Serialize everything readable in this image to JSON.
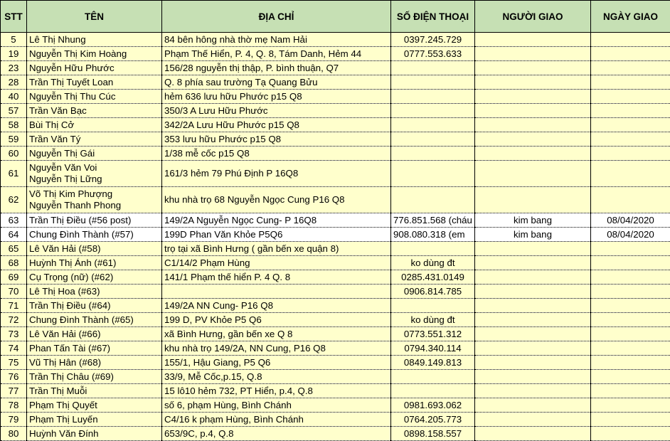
{
  "headers": [
    "STT",
    "TÊN",
    "ĐỊA CHỈ",
    "SỐ ĐIỆN THOẠI",
    "NGƯỜI GIAO",
    "NGÀY GIAO"
  ],
  "colors": {
    "header_bg": "#c6e0b4",
    "row_bg": "#ffffcc",
    "highlight_row_bg": "#ffffff"
  },
  "rows": [
    {
      "stt": "5",
      "name": "Lê Thị Nhung",
      "address": "84 bên hông nhà thờ mẹ Nam Hải",
      "phone": "0397.245.729",
      "deliverer": "",
      "date": ""
    },
    {
      "stt": "19",
      "name": "Nguyễn Thị Kim Hoàng",
      "address": "Phạm Thế Hiển, P. 4, Q. 8,  Tám Danh, Hẻm 44",
      "phone": "0777.553.633",
      "deliverer": "",
      "date": ""
    },
    {
      "stt": "23",
      "name": "Nguyễn Hữu Phước",
      "address": "156/28 nguyễn thị thập, P. bình thuận, Q7",
      "phone": "",
      "deliverer": "",
      "date": ""
    },
    {
      "stt": "28",
      "name": "Trần Thị Tuyết Loan",
      "address": "Q. 8 phía sau trường Tạ Quang Bửu",
      "phone": "",
      "deliverer": "",
      "date": ""
    },
    {
      "stt": "40",
      "name": "Nguyễn Thị Thu Cúc",
      "address": "hẻm 636 lưu hữu Phước p15 Q8",
      "phone": "",
      "deliverer": "",
      "date": ""
    },
    {
      "stt": "57",
      "name": "Trần Văn Bạc",
      "address": "350/3 A Lưu Hữu Phước",
      "phone": "",
      "deliverer": "",
      "date": ""
    },
    {
      "stt": "58",
      "name": "Bùi Thị Cở",
      "address": "342/2A Lưu Hữu Phước p15 Q8",
      "phone": "",
      "deliverer": "",
      "date": ""
    },
    {
      "stt": "59",
      "name": "Trần Văn Tý",
      "address": "353 lưu  hữu Phước p15 Q8",
      "phone": "",
      "deliverer": "",
      "date": ""
    },
    {
      "stt": "60",
      "name": "Nguyễn Thị Gái",
      "address": "1/38 mễ cốc p15 Q8",
      "phone": "",
      "deliverer": "",
      "date": ""
    },
    {
      "stt": "61",
      "name": "Nguyễn Văn Voi",
      "name2": "Nguyễn Thị Lững",
      "address": "161/3 hẻm 79 Phú Định P 16Q8",
      "phone": "",
      "deliverer": "",
      "date": ""
    },
    {
      "stt": "62",
      "name": "Võ Thị Kim Phượng",
      "name2": "Nguyễn Thanh Phong",
      "address": "khu nhà trọ 68 Nguyễn Ngọc Cung P16 Q8",
      "phone": "",
      "deliverer": "",
      "date": ""
    },
    {
      "stt": "63",
      "name": "Trần Thị Điều (#56 post)",
      "address": "149/2A Nguyễn Ngọc Cung- P 16Q8",
      "phone": "776.851.568 (cháu",
      "deliverer": "kim bang",
      "date": "08/04/2020"
    },
    {
      "stt": "64",
      "name": "Chung Đình Thành (#57)",
      "address": "199D Phan Văn Khỏe P5Q6",
      "phone": "908.080.318 (em",
      "deliverer": "kim bang",
      "date": "08/04/2020"
    },
    {
      "stt": "65",
      "name": "Lê Văn Hải (#58)",
      "address": "trọ tại xã Bình Hưng ( gần bến xe quận 8)",
      "phone": "",
      "deliverer": "",
      "date": ""
    },
    {
      "stt": "68",
      "name": "Huỳnh Thị Ánh (#61)",
      "address": "C1/14/2 Phạm Hùng",
      "phone": "ko dùng đt",
      "deliverer": "",
      "date": ""
    },
    {
      "stt": "69",
      "name": "Cụ Trọng (nữ) (#62)",
      "address": "141/1 Phạm thế hiển P. 4 Q. 8",
      "phone": "0285.431.0149",
      "deliverer": "",
      "date": ""
    },
    {
      "stt": "70",
      "name": "Lê Thị Hoa (#63)",
      "address": "",
      "phone": "0906.814.785",
      "deliverer": "",
      "date": ""
    },
    {
      "stt": "71",
      "name": "Trần Thị Điều (#64)",
      "address": "149/2A NN Cung- P16 Q8",
      "phone": "",
      "deliverer": "",
      "date": ""
    },
    {
      "stt": "72",
      "name": "Chung Đình Thành (#65)",
      "address": "199 D, PV Khỏe P5 Q6",
      "phone": "ko dùng đt",
      "deliverer": "",
      "date": ""
    },
    {
      "stt": "73",
      "name": "Lê Văn Hải (#66)",
      "address": "xã Bình Hưng, gần bến xe Q 8",
      "phone": "0773.551.312",
      "deliverer": "",
      "date": ""
    },
    {
      "stt": "74",
      "name": "Phan Tấn Tài (#67)",
      "address": "khu nhà trọ 149/2A, NN Cung, P16 Q8",
      "phone": "0794.340.114",
      "deliverer": "",
      "date": ""
    },
    {
      "stt": "75",
      "name": "Vũ Thị Hân (#68)",
      "address": "155/1, Hậu Giang, P5 Q6",
      "phone": "0849.149.813",
      "deliverer": "",
      "date": ""
    },
    {
      "stt": "76",
      "name": "Trần Thị Châu (#69)",
      "address": "33/9, Mễ Cốc,p.15, Q.8",
      "phone": "",
      "deliverer": "",
      "date": ""
    },
    {
      "stt": "77",
      "name": "Trần Thị Muỗi",
      "address": "15 lô10 hẻm 732, PT Hiển, p.4, Q.8",
      "phone": "",
      "deliverer": "",
      "date": ""
    },
    {
      "stt": "78",
      "name": "Phạm Thị Quyết",
      "address": "số 6, phạm Hùng, Bình Chánh",
      "phone": "0981.693.062",
      "deliverer": "",
      "date": ""
    },
    {
      "stt": "79",
      "name": "Phạm Thị Luyến",
      "address": "C4/16 k phạm Hùng, Bình Chánh",
      "phone": "0764.205.773",
      "deliverer": "",
      "date": ""
    },
    {
      "stt": "80",
      "name": "Huỳnh Văn Đính",
      "address": "653/9C, p.4, Q.8",
      "phone": "0898.158.557",
      "deliverer": "",
      "date": ""
    }
  ]
}
